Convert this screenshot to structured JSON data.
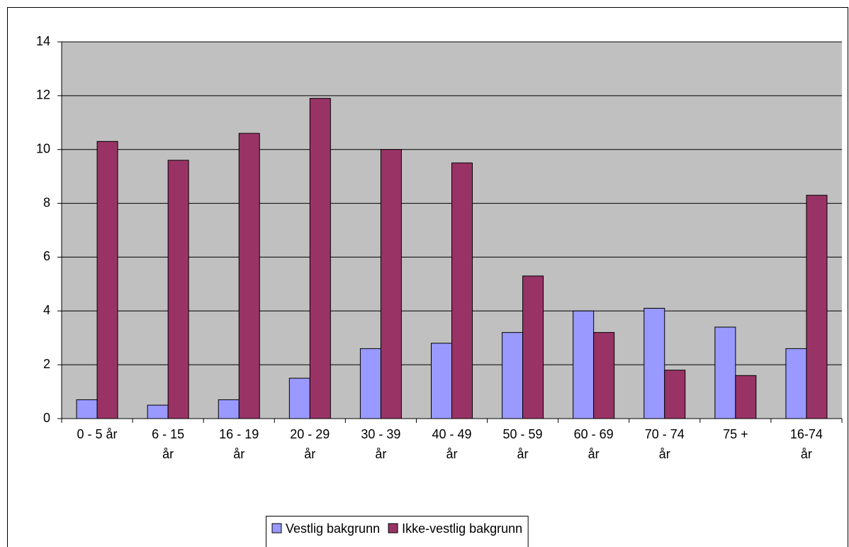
{
  "chart_data": {
    "type": "bar",
    "categories": [
      "0 - 5 år",
      "6 - 15 år",
      "16 - 19 år",
      "20 - 29 år",
      "30 - 39 år",
      "40 - 49 år",
      "50 - 59 år",
      "60 - 69 år",
      "70 - 74 år",
      "75 +",
      "16-74 år"
    ],
    "series": [
      {
        "name": "Vestlig bakgrunn",
        "color": "#9999ff",
        "values": [
          0.7,
          0.5,
          0.7,
          1.5,
          2.6,
          2.8,
          3.2,
          4.0,
          4.1,
          3.4,
          2.6
        ]
      },
      {
        "name": "Ikke-vestlig bakgrunn",
        "color": "#993366",
        "values": [
          10.3,
          9.6,
          10.6,
          11.9,
          10.0,
          9.5,
          5.3,
          3.2,
          1.8,
          1.6,
          8.3
        ]
      }
    ],
    "ylim": [
      0,
      14
    ],
    "yticks": [
      0,
      2,
      4,
      6,
      8,
      10,
      12,
      14
    ],
    "grid": true,
    "legend": "bottom"
  }
}
